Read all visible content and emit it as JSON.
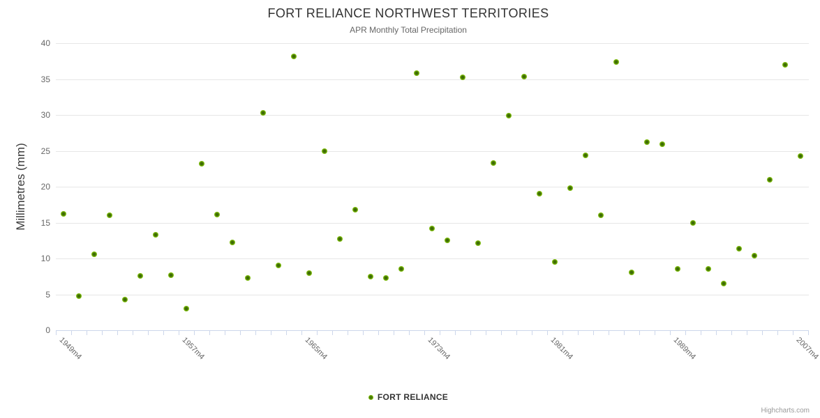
{
  "header": {
    "title": "FORT RELIANCE NORTHWEST TERRITORIES",
    "subtitle": "APR Monthly Total Precipitation"
  },
  "legend": {
    "label": "FORT RELIANCE"
  },
  "credit": "Highcharts.com",
  "colors": {
    "marker_fill": "#7fbe0c",
    "marker_core": "#3e6c05",
    "gridline": "#e6e6e6",
    "axis_line": "#ccd6eb",
    "title_text": "#333333",
    "axis_text": "#666666"
  },
  "chart_data": {
    "type": "scatter",
    "title": "FORT RELIANCE NORTHWEST TERRITORIES",
    "subtitle": "APR Monthly Total Precipitation",
    "ylabel": "Millimetres (mm)",
    "xlabel": "",
    "ylim": [
      0,
      40
    ],
    "y_ticks": [
      0,
      5,
      10,
      15,
      20,
      25,
      30,
      35,
      40
    ],
    "grid": "horizontal",
    "legend_position": "bottom-center",
    "n_categories": 49,
    "x_label_interval": 8,
    "x_tick_labels": [
      "1949m4",
      "1957m4",
      "1965m4",
      "1973m4",
      "1981m4",
      "1989m4",
      "2007m4"
    ],
    "series": [
      {
        "name": "FORT RELIANCE",
        "color": "#7fbe0c",
        "values": [
          16.2,
          4.8,
          10.6,
          16.0,
          4.3,
          7.6,
          13.3,
          7.7,
          3.0,
          23.2,
          16.1,
          12.2,
          7.3,
          30.3,
          9.0,
          38.2,
          8.0,
          25.0,
          12.7,
          16.8,
          7.5,
          7.3,
          8.5,
          35.8,
          14.2,
          12.5,
          35.2,
          12.1,
          23.3,
          29.9,
          35.3,
          19.0,
          9.5,
          19.8,
          24.4,
          16.0,
          37.4,
          8.1,
          26.2,
          25.9,
          8.5,
          15.0,
          8.5,
          6.5,
          11.4,
          10.4,
          21.0,
          37.0,
          24.3
        ]
      }
    ]
  }
}
